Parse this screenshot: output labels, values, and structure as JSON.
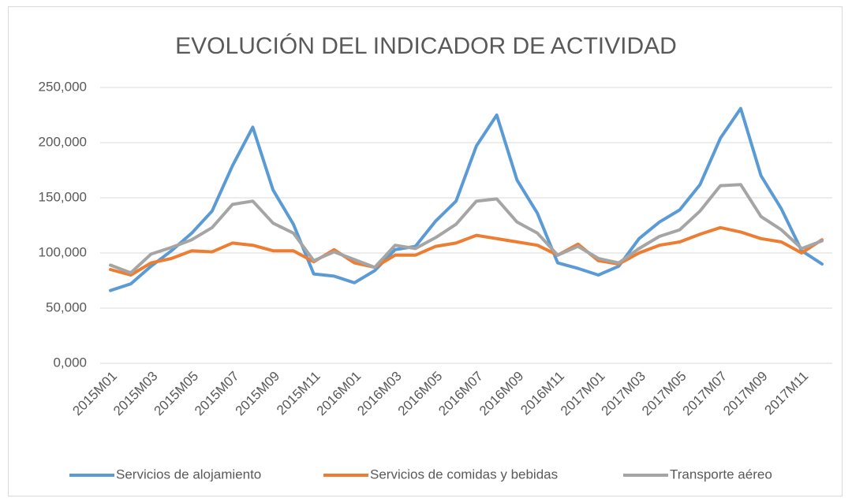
{
  "chart_data": {
    "type": "line",
    "title": "EVOLUCIÓN DEL INDICADOR DE ACTIVIDAD",
    "categories": [
      "2015M01",
      null,
      "2015M03",
      null,
      "2015M05",
      null,
      "2015M07",
      null,
      "2015M09",
      null,
      "2015M11",
      null,
      "2016M01",
      null,
      "2016M03",
      null,
      "2016M05",
      null,
      "2016M07",
      null,
      "2016M09",
      null,
      "2016M11",
      null,
      "2017M01",
      null,
      "2017M03",
      null,
      "2017M05",
      null,
      "2017M07",
      null,
      "2017M09",
      null,
      "2017M11",
      null
    ],
    "series": [
      {
        "name": "Servicios de alojamiento",
        "color": "#5b9bd5",
        "values": [
          66,
          72,
          88,
          102,
          118,
          138,
          179,
          214,
          157,
          126,
          81,
          79,
          73,
          84,
          103,
          106,
          129,
          147,
          197,
          225,
          166,
          136,
          91,
          86,
          80,
          88,
          113,
          128,
          139,
          162,
          204,
          231,
          170,
          140,
          102,
          90
        ]
      },
      {
        "name": "Servicios de comidas y bebidas",
        "color": "#ed7d31",
        "values": [
          85,
          80,
          91,
          95,
          102,
          101,
          109,
          107,
          102,
          102,
          92,
          103,
          91,
          87,
          98,
          98,
          106,
          109,
          116,
          113,
          110,
          107,
          98,
          108,
          93,
          90,
          100,
          107,
          110,
          117,
          123,
          119,
          113,
          110,
          100,
          112
        ]
      },
      {
        "name": "Transporte aéreo",
        "color": "#a5a5a5",
        "values": [
          89,
          82,
          99,
          105,
          112,
          123,
          144,
          147,
          127,
          118,
          93,
          101,
          94,
          87,
          107,
          104,
          114,
          126,
          147,
          149,
          128,
          118,
          98,
          106,
          95,
          91,
          104,
          115,
          121,
          138,
          161,
          162,
          133,
          121,
          104,
          111
        ]
      }
    ],
    "ylim": [
      0,
      250
    ],
    "yticks": [
      {
        "value": 0,
        "label": "0,000"
      },
      {
        "value": 50,
        "label": "50,000"
      },
      {
        "value": 100,
        "label": "100,000"
      },
      {
        "value": 150,
        "label": "150,000"
      },
      {
        "value": 200,
        "label": "200,000"
      },
      {
        "value": 250,
        "label": "250,000"
      }
    ],
    "grid": true,
    "legend": "bottom"
  }
}
